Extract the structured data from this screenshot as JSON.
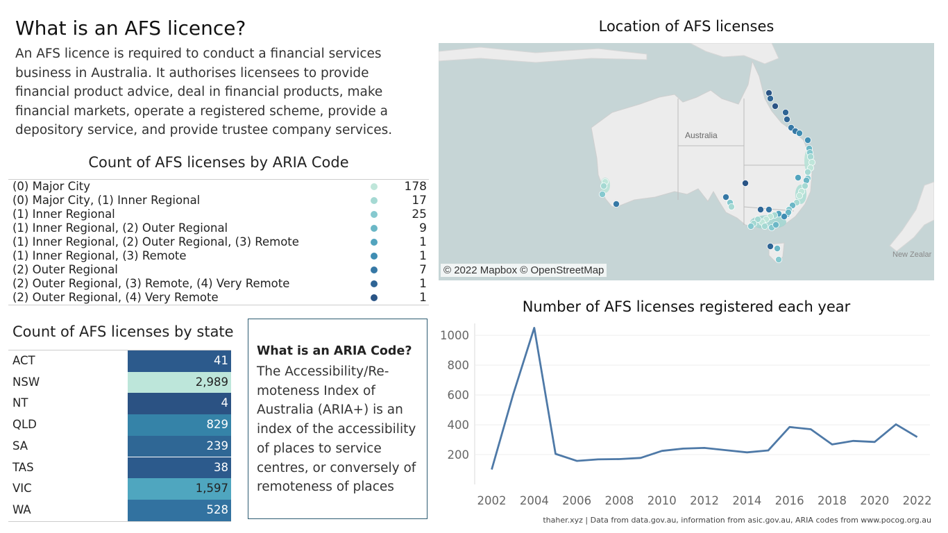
{
  "intro": {
    "title": "What is an AFS licence?",
    "text": "An AFS licence is required to conduct a financial services business in Australia. It authorises licensees to provide financial product advice, deal in financial products, make financial markets, operate a registered scheme, provide a depository service, and provide trustee company services."
  },
  "aria_box": {
    "title": "What is an ARIA Code?",
    "text": "The Accessibility/Re-moteness Index of Australia (ARIA+) is an index of the accessibility of places to service centres, or conversely of remoteness of places"
  },
  "map": {
    "title": "Location of AFS licenses",
    "country_label": "Australia",
    "nz_label": "New Zealar",
    "credit": "© 2022 Mapbox © OpenStreetMap",
    "colors": {
      "water": "#c6d5d6",
      "land": "#ececec",
      "border": "#b8b8b8"
    }
  },
  "footer": "thaher.xyz | Data from data.gov.au, information from asic.gov.au, ARIA codes from www.pocog.org.au",
  "chart_data": [
    {
      "type": "table",
      "title": "Count of AFS licenses by ARIA Code",
      "rows": [
        {
          "label": "(0) Major City",
          "value": "178",
          "color": "#bfe6da"
        },
        {
          "label": "(0) Major City, (1) Inner Regional",
          "value": "17",
          "color": "#a5d9d3"
        },
        {
          "label": "(1) Inner Regional",
          "value": "25",
          "color": "#86c9cf"
        },
        {
          "label": "(1) Inner Regional, (2) Outer Regional",
          "value": "9",
          "color": "#6bb7c6"
        },
        {
          "label": "(1) Inner Regional, (2) Outer Regional, (3) Remote",
          "value": "1",
          "color": "#52a4be"
        },
        {
          "label": "(1) Inner Regional, (3) Remote",
          "value": "1",
          "color": "#3f8db3"
        },
        {
          "label": "(2) Outer Regional",
          "value": "7",
          "color": "#3678a5"
        },
        {
          "label": "(2) Outer Regional, (3) Remote, (4) Very Remote",
          "value": "1",
          "color": "#2f6595"
        },
        {
          "label": "(2) Outer Regional, (4) Very Remote",
          "value": "1",
          "color": "#2a5485"
        }
      ]
    },
    {
      "type": "table",
      "title": "Count of AFS licenses by state",
      "rows": [
        {
          "label": "ACT",
          "value": "41",
          "color": "#2c5a8c",
          "text_color": "#ffffff"
        },
        {
          "label": "NSW",
          "value": "2,989",
          "color": "#bde6da",
          "text_color": "#222222"
        },
        {
          "label": "NT",
          "value": "4",
          "color": "#2b5283",
          "text_color": "#ffffff"
        },
        {
          "label": "QLD",
          "value": "829",
          "color": "#3583a8",
          "text_color": "#ffffff"
        },
        {
          "label": "SA",
          "value": "239",
          "color": "#2f6795",
          "text_color": "#ffffff"
        },
        {
          "label": "TAS",
          "value": "38",
          "color": "#2c5a8c",
          "text_color": "#ffffff"
        },
        {
          "label": "VIC",
          "value": "1,597",
          "color": "#4fa6bf",
          "text_color": "#222222"
        },
        {
          "label": "WA",
          "value": "528",
          "color": "#3272a0",
          "text_color": "#ffffff"
        }
      ]
    },
    {
      "type": "line",
      "title": "Number of AFS licenses registered each year",
      "xlabel": "",
      "ylabel": "",
      "x": [
        2002,
        2003,
        2004,
        2005,
        2006,
        2007,
        2008,
        2009,
        2010,
        2011,
        2012,
        2013,
        2014,
        2015,
        2016,
        2017,
        2018,
        2019,
        2020,
        2021,
        2022
      ],
      "series": [
        {
          "values": [
            100,
            600,
            1050,
            205,
            158,
            168,
            170,
            178,
            225,
            240,
            245,
            230,
            215,
            228,
            385,
            370,
            268,
            292,
            285,
            403,
            318
          ]
        }
      ],
      "xticks": [
        "2002",
        "2004",
        "2006",
        "2008",
        "2010",
        "2012",
        "2014",
        "2016",
        "2018",
        "2020",
        "2022"
      ],
      "yticks": [
        "200",
        "400",
        "600",
        "800",
        "1000"
      ],
      "xlim": [
        2001.2,
        2022.6
      ],
      "ylim": [
        0,
        1080
      ],
      "line_color": "#4e79a7",
      "grid": true
    }
  ]
}
